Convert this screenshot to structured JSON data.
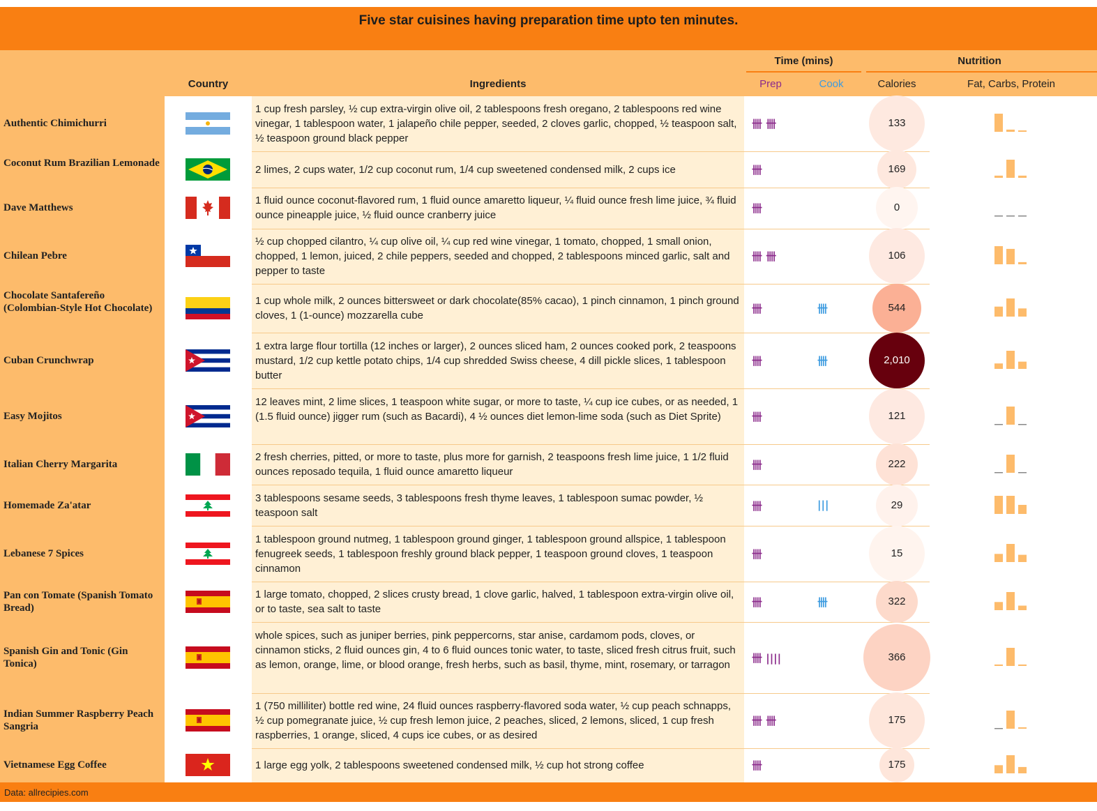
{
  "title": {
    "prefix": "Five star cuisines having preparation time upto ",
    "emph": "ten minutes",
    "suffix": "."
  },
  "headers": {
    "country": "Country",
    "ingredients": "Ingredients",
    "time_group": "Time (mins)",
    "prep": "Prep",
    "cook": "Cook",
    "nutrition_group": "Nutrition",
    "calories": "Calories",
    "macros": "Fat, Carbs, Protein"
  },
  "colors": {
    "accent": "#f97f12",
    "header_bg": "#fdbb6b",
    "ingredients_bg": "#fff0d5",
    "prep": "#8b2b8b",
    "cook": "#3c9be0",
    "macro_bar": "#fdbb6b"
  },
  "rows": [
    {
      "name": "Authentic Chimichurri",
      "country": "Argentina",
      "flag_icon": "argentina-flag-icon",
      "ingredients": "1 cup fresh parsley, ½ cup extra-virgin olive oil, 2 tablespoons fresh oregano, 2 tablespoons red wine vinegar, 1 tablespoon water, 1 jalapeño chile pepper, seeded, 2 cloves garlic, chopped, ½ teaspoon salt, ½ teaspoon ground black pepper",
      "prep": 10,
      "cook": 0,
      "prep_tally": "卌 卌",
      "cook_tally": "",
      "calories": "133",
      "macros": [
        1.0,
        0.12,
        0.04
      ]
    },
    {
      "name": "Coconut Rum Brazilian Lemonade",
      "country": "Brazil",
      "flag_icon": "brazil-flag-icon",
      "ingredients": "2 limes, 2 cups water, 1/2 cup coconut rum, 1/4 cup sweetened condensed milk, 2 cups ice",
      "prep": 5,
      "cook": 0,
      "prep_tally": "卌",
      "cook_tally": "",
      "calories": "169",
      "macros": [
        0.12,
        1.0,
        0.12
      ]
    },
    {
      "name": "Dave Matthews",
      "country": "Canada",
      "flag_icon": "canada-flag-icon",
      "ingredients": "1 fluid ounce coconut-flavored rum, 1 fluid ounce amaretto liqueur, ¼ fluid ounce fresh lime juice, ¾ fluid ounce pineapple juice, ½ fluid ounce cranberry juice",
      "prep": 5,
      "cook": 0,
      "prep_tally": "卌",
      "cook_tally": "",
      "calories": "0",
      "macros": [
        0,
        0,
        0
      ]
    },
    {
      "name": "Chilean Pebre",
      "country": "Chile",
      "flag_icon": "chile-flag-icon",
      "ingredients": "½ cup chopped cilantro, ¼ cup olive oil, ¼ cup red wine vinegar, 1 tomato, chopped, 1 small onion, chopped, 1 lemon, juiced, 2 chile peppers, seeded and chopped, 2 tablespoons minced garlic, salt and pepper to taste",
      "prep": 10,
      "cook": 0,
      "prep_tally": "卌 卌",
      "cook_tally": "",
      "calories": "106",
      "macros": [
        1.0,
        0.85,
        0.12
      ]
    },
    {
      "name": "Chocolate Santafereño (Colombian-Style Hot Chocolate)",
      "country": "Colombia",
      "flag_icon": "colombia-flag-icon",
      "ingredients": "1 cup whole milk, 2 ounces bittersweet or dark chocolate(85% cacao), 1 pinch cinnamon, 1 pinch ground cloves, 1 (1-ounce) mozzarella cube",
      "prep": 5,
      "cook": 5,
      "prep_tally": "卌",
      "cook_tally": "卌",
      "calories": "544",
      "macros": [
        0.55,
        1.0,
        0.45
      ]
    },
    {
      "name": "Cuban Crunchwrap",
      "country": "Cuba",
      "flag_icon": "cuba-flag-icon",
      "ingredients": "1 extra large flour tortilla (12 inches or larger), 2 ounces sliced ham, 2 ounces cooked pork, 2 teaspoons mustard, 1/2 cup kettle potato chips, 1/4 cup shredded Swiss cheese, 4 dill pickle slices, 1 tablespoon butter",
      "prep": 5,
      "cook": 5,
      "prep_tally": "卌",
      "cook_tally": "卌",
      "calories": "2,010",
      "macros": [
        0.3,
        1.0,
        0.4
      ]
    },
    {
      "name": "Easy Mojitos",
      "country": "Cuba",
      "flag_icon": "cuba-flag-icon",
      "ingredients": "12 leaves mint, 2 lime slices, 1 teaspoon white sugar, or more to taste, ¼ cup ice cubes, or as needed, 1 (1.5 fluid ounce) jigger rum (such as Bacardi), 4 ½ ounces diet lemon-lime soda (such as Diet Sprite)",
      "prep": 5,
      "cook": 0,
      "prep_tally": "卌",
      "cook_tally": "",
      "calories": "121",
      "macros": [
        0.02,
        1.0,
        0.02
      ]
    },
    {
      "name": "Italian Cherry Margarita",
      "country": "Italy",
      "flag_icon": "italy-flag-icon",
      "ingredients": "2 fresh cherries, pitted, or more to taste, plus more for garnish, 2 teaspoons fresh lime juice, 1 1/2 fluid ounces reposado tequila, 1 fluid ounce amaretto liqueur",
      "prep": 5,
      "cook": 0,
      "prep_tally": "卌",
      "cook_tally": "",
      "calories": "222",
      "macros": [
        0.02,
        1.0,
        0.02
      ]
    },
    {
      "name": "Homemade Za'atar",
      "country": "Lebanon",
      "flag_icon": "lebanon-flag-icon",
      "ingredients": "3 tablespoons sesame seeds, 3 tablespoons fresh thyme leaves, 1 tablespoon sumac powder, ½ teaspoon salt",
      "prep": 5,
      "cook": 3,
      "prep_tally": "卌",
      "cook_tally": "|||",
      "calories": "29",
      "macros": [
        1.0,
        1.0,
        0.5
      ]
    },
    {
      "name": "Lebanese 7 Spices",
      "country": "Lebanon",
      "flag_icon": "lebanon-flag-icon",
      "ingredients": "1 tablespoon ground nutmeg, 1 tablespoon ground ginger, 1 tablespoon ground allspice, 1 tablespoon fenugreek seeds, 1 tablespoon freshly ground black pepper, 1 teaspoon ground cloves, 1 teaspoon cinnamon",
      "prep": 5,
      "cook": 0,
      "prep_tally": "卌",
      "cook_tally": "",
      "calories": "15",
      "macros": [
        0.45,
        1.0,
        0.4
      ]
    },
    {
      "name": "Pan con Tomate (Spanish Tomato Bread)",
      "country": "Spain",
      "flag_icon": "spain-flag-icon",
      "ingredients": "1 large tomato, chopped, 2 slices crusty bread, 1 clove garlic, halved, 1 tablespoon extra-virgin olive oil, or to taste, sea salt to taste",
      "prep": 5,
      "cook": 5,
      "prep_tally": "卌",
      "cook_tally": "卌",
      "calories": "322",
      "macros": [
        0.45,
        1.0,
        0.25
      ]
    },
    {
      "name": "Spanish Gin and Tonic (Gin Tonica)",
      "country": "Spain",
      "flag_icon": "spain-flag-icon",
      "ingredients": "whole spices, such as juniper berries, pink peppercorns, star anise, cardamom pods, cloves, or cinnamon sticks, 2 fluid ounces gin, 4 to 6 fluid ounces tonic water, to taste, sliced fresh citrus fruit, such as lemon, orange, lime, or blood orange, fresh herbs, such as basil, thyme, mint, rosemary, or tarragon",
      "prep": 9,
      "cook": 0,
      "prep_tally": "卌 ||||",
      "cook_tally": "",
      "calories": "366",
      "macros": [
        0.08,
        1.0,
        0.08
      ]
    },
    {
      "name": "Indian Summer Raspberry Peach Sangria",
      "country": "Spain",
      "flag_icon": "spain-flag-icon",
      "ingredients": "1 (750 milliliter) bottle red wine, 24 fluid ounces raspberry-flavored soda water, ½ cup peach schnapps, ½ cup pomegranate juice, ½ cup fresh lemon juice, 2 peaches, sliced, 2 lemons, sliced, 1 cup fresh raspberries, 1 orange, sliced, 4 cups ice cubes, or as desired",
      "prep": 10,
      "cook": 0,
      "prep_tally": "卌 卌",
      "cook_tally": "",
      "calories": "175",
      "macros": [
        0.02,
        1.0,
        0.05
      ]
    },
    {
      "name": "Vietnamese Egg Coffee",
      "country": "Vietnam",
      "flag_icon": "vietnam-flag-icon",
      "ingredients": "1 large egg yolk, 2 tablespoons sweetened condensed milk, ½ cup hot strong coffee",
      "prep": 5,
      "cook": 0,
      "prep_tally": "卌",
      "cook_tally": "",
      "calories": "175",
      "macros": [
        0.45,
        1.0,
        0.35
      ]
    }
  ],
  "calorie_colors": [
    "#fee9e0",
    "#fee8de",
    "#fff5f0",
    "#fee9e1",
    "#fbb095",
    "#67000d",
    "#fee9e1",
    "#fee2d6",
    "#fff2ec",
    "#fff4ee",
    "#fddacb",
    "#fdd3c3",
    "#fee6db",
    "#fee6db"
  ],
  "footer": "Data: allrecipies.com"
}
